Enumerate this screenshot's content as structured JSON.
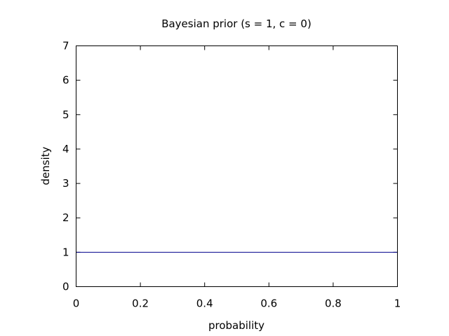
{
  "chart_data": {
    "type": "line",
    "title": "Bayesian prior (s = 1, c = 0)",
    "xlabel": "probability",
    "ylabel": "density",
    "xlim": [
      0,
      1
    ],
    "ylim": [
      0,
      7
    ],
    "x_ticks": [
      "0",
      "0.2",
      "0.4",
      "0.6",
      "0.8",
      "1"
    ],
    "y_ticks": [
      "0",
      "1",
      "2",
      "3",
      "4",
      "5",
      "6",
      "7"
    ],
    "grid": false,
    "series": [
      {
        "x": [
          0,
          0.2,
          0.4,
          0.6,
          0.8,
          1
        ],
        "y": [
          1,
          1,
          1,
          1,
          1,
          1
        ],
        "color": "#00008b"
      }
    ]
  }
}
